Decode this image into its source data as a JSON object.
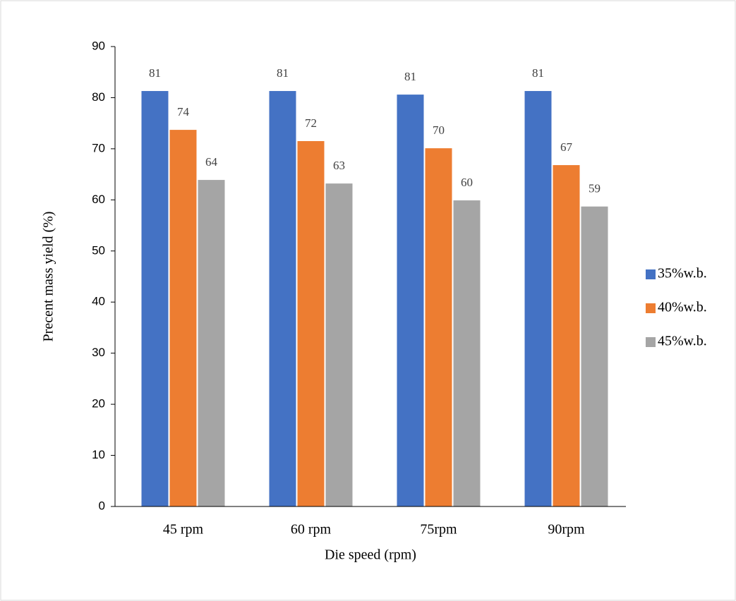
{
  "chart_data": {
    "type": "bar",
    "x_label": "Die speed (rpm)",
    "y_label": "Precent mass yield (%)",
    "categories": [
      "45 rpm",
      "60 rpm",
      "75rpm",
      "90rpm"
    ],
    "series": [
      {
        "name": "35%w.b.",
        "color": "#4472c4",
        "values": [
          81.3,
          81.3,
          80.6,
          81.3
        ],
        "value_labels": [
          "81",
          "81",
          "81",
          "81"
        ]
      },
      {
        "name": "40%w.b.",
        "color": "#ed7d31",
        "values": [
          73.7,
          71.5,
          70.1,
          66.8
        ],
        "value_labels": [
          "74",
          "72",
          "70",
          "67"
        ]
      },
      {
        "name": "45%w.b.",
        "color": "#a5a5a5",
        "values": [
          63.9,
          63.2,
          59.9,
          58.7
        ],
        "value_labels": [
          "64",
          "63",
          "60",
          "59"
        ]
      }
    ],
    "ylim": [
      0,
      90
    ],
    "yticks": [
      0,
      10,
      20,
      30,
      40,
      50,
      60,
      70,
      80,
      90
    ],
    "legend": "right"
  }
}
